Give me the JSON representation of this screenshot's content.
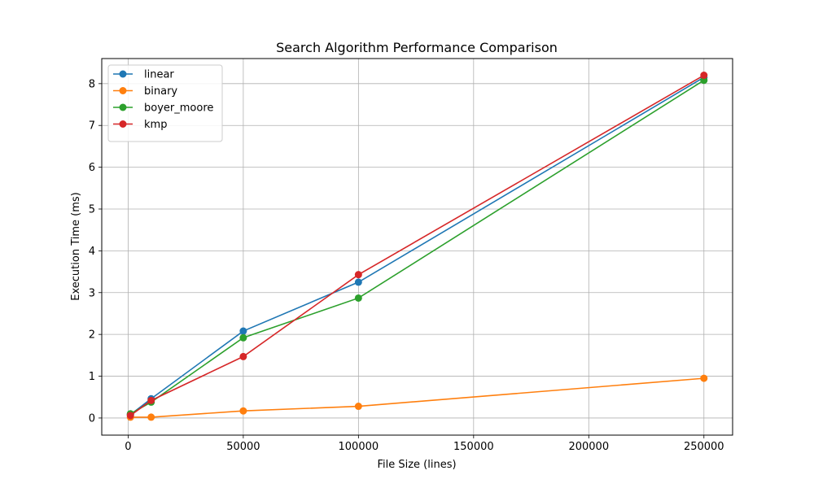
{
  "chart_data": {
    "type": "line",
    "title": "Search Algorithm Performance Comparison",
    "xlabel": "File Size (lines)",
    "ylabel": "Execution Time (ms)",
    "x": [
      1000,
      10000,
      50000,
      100000,
      250000
    ],
    "xlim": [
      -11450,
      262450
    ],
    "ylim": [
      -0.41,
      8.6
    ],
    "xticks": [
      0,
      50000,
      100000,
      150000,
      200000,
      250000
    ],
    "yticks": [
      0,
      1,
      2,
      3,
      4,
      5,
      6,
      7,
      8
    ],
    "xtick_labels": [
      "0",
      "50000",
      "100000",
      "150000",
      "200000",
      "250000"
    ],
    "ytick_labels": [
      "0",
      "1",
      "2",
      "3",
      "4",
      "5",
      "6",
      "7",
      "8"
    ],
    "grid": true,
    "legend_position": "upper-left",
    "series": [
      {
        "name": "linear",
        "color": "#1f77b4",
        "values": [
          0.08,
          0.46,
          2.08,
          3.25,
          8.15
        ]
      },
      {
        "name": "binary",
        "color": "#ff7f0e",
        "values": [
          0.02,
          0.02,
          0.17,
          0.28,
          0.95
        ]
      },
      {
        "name": "boyer_moore",
        "color": "#2ca02c",
        "values": [
          0.1,
          0.38,
          1.92,
          2.87,
          8.08
        ]
      },
      {
        "name": "kmp",
        "color": "#d62728",
        "values": [
          0.06,
          0.42,
          1.47,
          3.43,
          8.2
        ]
      }
    ]
  }
}
